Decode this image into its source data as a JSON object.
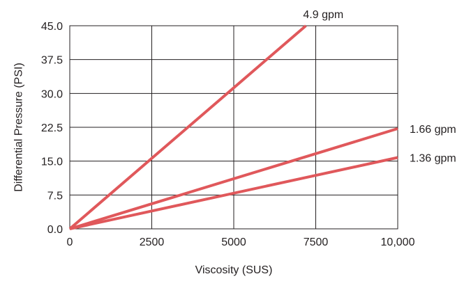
{
  "chart_data": {
    "type": "line",
    "title": "",
    "xlabel": "Viscosity (SUS)",
    "ylabel": "Differential Pressure (PSI)",
    "xlim": [
      0,
      10000
    ],
    "ylim": [
      0,
      45
    ],
    "grid": true,
    "x_ticks": [
      {
        "value": 0,
        "label": "0"
      },
      {
        "value": 2500,
        "label": "2500"
      },
      {
        "value": 5000,
        "label": "5000"
      },
      {
        "value": 7500,
        "label": "7500"
      },
      {
        "value": 10000,
        "label": "10,000"
      }
    ],
    "y_ticks": [
      {
        "value": 0,
        "label": "0.0"
      },
      {
        "value": 7.5,
        "label": "7.5"
      },
      {
        "value": 15,
        "label": "15.0"
      },
      {
        "value": 22.5,
        "label": "22.5"
      },
      {
        "value": 30,
        "label": "30.0"
      },
      {
        "value": 37.5,
        "label": "37.5"
      },
      {
        "value": 45,
        "label": "45.0"
      }
    ],
    "series": [
      {
        "name": "4.9 gpm",
        "color": "#e0585b",
        "x": [
          0,
          7200
        ],
        "y": [
          0,
          45
        ]
      },
      {
        "name": "1.66 gpm",
        "color": "#e0585b",
        "x": [
          0,
          10000
        ],
        "y": [
          0,
          22.2
        ]
      },
      {
        "name": "1.36 gpm",
        "color": "#e0585b",
        "x": [
          0,
          10000
        ],
        "y": [
          0,
          15.8
        ]
      }
    ]
  }
}
